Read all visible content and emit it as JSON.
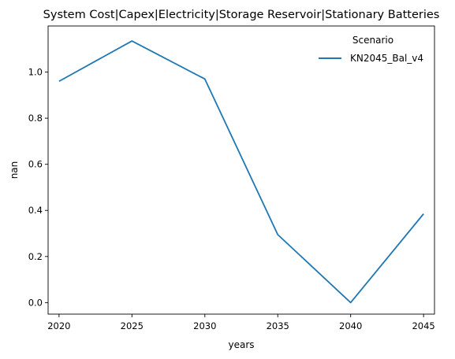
{
  "chart_data": {
    "type": "line",
    "title": "System Cost|Capex|Electricity|Storage Reservoir|Stationary Batteries",
    "xlabel": "years",
    "ylabel": "nan",
    "x": [
      2020,
      2025,
      2030,
      2035,
      2040,
      2045
    ],
    "xticks": [
      "2020",
      "2025",
      "2030",
      "2035",
      "2040",
      "2045"
    ],
    "yticks": [
      "0.0",
      "0.2",
      "0.4",
      "0.6",
      "0.8",
      "1.0"
    ],
    "xlim": [
      2019.25,
      2045.75
    ],
    "ylim": [
      -0.05,
      1.2
    ],
    "grid": false,
    "legend": {
      "title": "Scenario",
      "placement": "top-right"
    },
    "series": [
      {
        "name": "KN2045_Bal_v4",
        "color": "#1f77b4",
        "values": [
          0.96,
          1.135,
          0.97,
          0.295,
          0.0,
          0.385
        ]
      }
    ]
  }
}
